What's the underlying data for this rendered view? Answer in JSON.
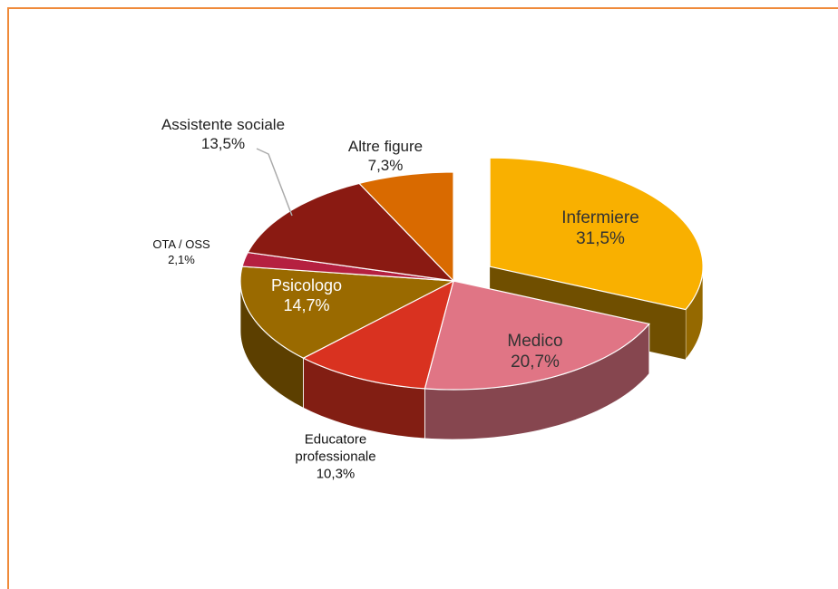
{
  "chart_data": {
    "type": "pie3d",
    "categories": [
      "Infermiere",
      "Medico",
      "Educatore professionale",
      "Psicologo",
      "OTA / OSS",
      "Assistente sociale",
      "Altre figure"
    ],
    "values": [
      31.5,
      20.7,
      10.3,
      14.7,
      2.1,
      13.5,
      7.3
    ],
    "value_labels": [
      "31,5%",
      "20,7%",
      "10,3%",
      "14,7%",
      "2,1%",
      "13,5%",
      "7,3%"
    ],
    "colors": [
      "#f9b000",
      "#e07585",
      "#d93220",
      "#9a6a00",
      "#b52040",
      "#8a1a12",
      "#d96a00"
    ]
  }
}
